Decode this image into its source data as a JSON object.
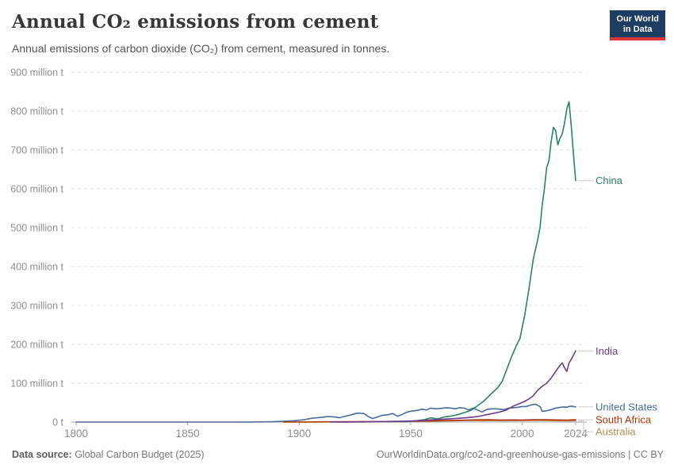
{
  "header": {
    "title": "Annual CO₂ emissions from cement",
    "subtitle": "Annual emissions of carbon dioxide (CO₂) from cement, measured in tonnes.",
    "logo": {
      "line1": "Our World",
      "line2": "in Data"
    }
  },
  "footer": {
    "datasource_label": "Data source:",
    "datasource_value": " Global Carbon Budget (2025)",
    "credit": "OurWorldinData.org/co2-and-greenhouse-gas-emissions | CC BY"
  },
  "chart_data": {
    "type": "line",
    "title": "Annual CO₂ emissions from cement",
    "xlabel": "",
    "ylabel": "",
    "y_unit": "million tonnes CO₂",
    "x_range": [
      1800,
      2024
    ],
    "y_range": [
      0,
      900
    ],
    "grid": "horizontal-dashed",
    "legend": "end-of-line-labels",
    "x_ticks": [
      {
        "value": 1800,
        "label": "1800"
      },
      {
        "value": 1850,
        "label": "1850"
      },
      {
        "value": 1900,
        "label": "1900"
      },
      {
        "value": 1950,
        "label": "1950"
      },
      {
        "value": 2000,
        "label": "2000"
      },
      {
        "value": 2024,
        "label": "2024"
      }
    ],
    "y_ticks": [
      {
        "value": 0,
        "label": "0 t"
      },
      {
        "value": 100,
        "label": "100 million t"
      },
      {
        "value": 200,
        "label": "200 million t"
      },
      {
        "value": 300,
        "label": "300 million t"
      },
      {
        "value": 400,
        "label": "400 million t"
      },
      {
        "value": 500,
        "label": "500 million t"
      },
      {
        "value": 600,
        "label": "600 million t"
      },
      {
        "value": 700,
        "label": "700 million t"
      },
      {
        "value": 800,
        "label": "800 million t"
      },
      {
        "value": 900,
        "label": "900 million t"
      }
    ],
    "series": [
      {
        "name": "United States",
        "color": "#4C6A9C",
        "points": [
          [
            1800,
            0.01
          ],
          [
            1850,
            0.02
          ],
          [
            1870,
            0.05
          ],
          [
            1880,
            0.2
          ],
          [
            1888,
            0.8
          ],
          [
            1893,
            1.8
          ],
          [
            1898,
            3.5
          ],
          [
            1902,
            6
          ],
          [
            1906,
            10
          ],
          [
            1910,
            12
          ],
          [
            1913,
            14
          ],
          [
            1916,
            13
          ],
          [
            1918,
            11
          ],
          [
            1920,
            14
          ],
          [
            1923,
            18
          ],
          [
            1926,
            23
          ],
          [
            1929,
            22
          ],
          [
            1931,
            14
          ],
          [
            1933,
            9
          ],
          [
            1935,
            13
          ],
          [
            1937,
            17
          ],
          [
            1940,
            19
          ],
          [
            1942,
            22
          ],
          [
            1944,
            15
          ],
          [
            1946,
            19
          ],
          [
            1948,
            25
          ],
          [
            1950,
            28
          ],
          [
            1953,
            30
          ],
          [
            1955,
            33
          ],
          [
            1957,
            31
          ],
          [
            1959,
            36
          ],
          [
            1961,
            34
          ],
          [
            1963,
            35
          ],
          [
            1966,
            37
          ],
          [
            1968,
            36
          ],
          [
            1970,
            34
          ],
          [
            1972,
            37
          ],
          [
            1974,
            36
          ],
          [
            1976,
            31
          ],
          [
            1978,
            36
          ],
          [
            1980,
            31
          ],
          [
            1982,
            26
          ],
          [
            1984,
            32
          ],
          [
            1986,
            34
          ],
          [
            1988,
            34
          ],
          [
            1990,
            33
          ],
          [
            1992,
            32
          ],
          [
            1994,
            36
          ],
          [
            1996,
            37
          ],
          [
            1998,
            38
          ],
          [
            2000,
            40
          ],
          [
            2002,
            40
          ],
          [
            2004,
            44
          ],
          [
            2006,
            46
          ],
          [
            2008,
            40
          ],
          [
            2009,
            28
          ],
          [
            2011,
            29
          ],
          [
            2013,
            32
          ],
          [
            2015,
            36
          ],
          [
            2017,
            38
          ],
          [
            2019,
            39
          ],
          [
            2020,
            38
          ],
          [
            2021,
            40
          ],
          [
            2022,
            41
          ],
          [
            2023,
            40
          ],
          [
            2024,
            39
          ]
        ]
      },
      {
        "name": "Australia",
        "color": "#BC8E5A",
        "points": [
          [
            1917,
            0.1
          ],
          [
            1925,
            0.4
          ],
          [
            1932,
            0.6
          ],
          [
            1940,
            0.9
          ],
          [
            1947,
            1.3
          ],
          [
            1952,
            1.8
          ],
          [
            1957,
            2.3
          ],
          [
            1962,
            2.7
          ],
          [
            1967,
            3.2
          ],
          [
            1972,
            3.7
          ],
          [
            1977,
            3.8
          ],
          [
            1982,
            3.4
          ],
          [
            1987,
            3.7
          ],
          [
            1992,
            3.4
          ],
          [
            1997,
            3.7
          ],
          [
            2002,
            3.8
          ],
          [
            2007,
            4.1
          ],
          [
            2012,
            3.7
          ],
          [
            2017,
            3.3
          ],
          [
            2020,
            3
          ],
          [
            2024,
            3
          ]
        ]
      },
      {
        "name": "South Africa",
        "color": "#B13507",
        "points": [
          [
            1893,
            0.1
          ],
          [
            1905,
            0.3
          ],
          [
            1915,
            0.6
          ],
          [
            1925,
            0.9
          ],
          [
            1935,
            1.3
          ],
          [
            1945,
            1.9
          ],
          [
            1950,
            2.3
          ],
          [
            1955,
            2.7
          ],
          [
            1960,
            3.2
          ],
          [
            1965,
            3.8
          ],
          [
            1970,
            4.3
          ],
          [
            1975,
            5
          ],
          [
            1980,
            5.8
          ],
          [
            1985,
            5.9
          ],
          [
            1990,
            5.4
          ],
          [
            1995,
            5.6
          ],
          [
            2000,
            5.4
          ],
          [
            2005,
            6
          ],
          [
            2010,
            6.2
          ],
          [
            2015,
            5.6
          ],
          [
            2020,
            5
          ],
          [
            2024,
            6
          ]
        ]
      },
      {
        "name": "China",
        "color": "#2C8465",
        "points": [
          [
            1928,
            0.2
          ],
          [
            1933,
            0.6
          ],
          [
            1938,
            1.2
          ],
          [
            1943,
            0.9
          ],
          [
            1948,
            1.3
          ],
          [
            1952,
            3
          ],
          [
            1956,
            6
          ],
          [
            1959,
            11
          ],
          [
            1962,
            8
          ],
          [
            1965,
            13
          ],
          [
            1968,
            15
          ],
          [
            1971,
            19
          ],
          [
            1974,
            24
          ],
          [
            1977,
            30
          ],
          [
            1980,
            42
          ],
          [
            1983,
            55
          ],
          [
            1986,
            72
          ],
          [
            1989,
            88
          ],
          [
            1991,
            104
          ],
          [
            1993,
            134
          ],
          [
            1995,
            164
          ],
          [
            1997,
            192
          ],
          [
            1999,
            215
          ],
          [
            2001,
            270
          ],
          [
            2003,
            340
          ],
          [
            2005,
            420
          ],
          [
            2007,
            470
          ],
          [
            2008,
            500
          ],
          [
            2009,
            558
          ],
          [
            2010,
            600
          ],
          [
            2011,
            655
          ],
          [
            2012,
            672
          ],
          [
            2013,
            722
          ],
          [
            2014,
            758
          ],
          [
            2015,
            750
          ],
          [
            2016,
            713
          ],
          [
            2017,
            730
          ],
          [
            2018,
            742
          ],
          [
            2019,
            768
          ],
          [
            2020,
            805
          ],
          [
            2021,
            824
          ],
          [
            2022,
            762
          ],
          [
            2023,
            690
          ],
          [
            2024,
            621
          ]
        ]
      },
      {
        "name": "India",
        "color": "#6D3E91",
        "points": [
          [
            1914,
            0.1
          ],
          [
            1922,
            0.3
          ],
          [
            1930,
            0.6
          ],
          [
            1938,
            1.2
          ],
          [
            1946,
            1.8
          ],
          [
            1950,
            2.6
          ],
          [
            1955,
            4
          ],
          [
            1960,
            6
          ],
          [
            1965,
            7.5
          ],
          [
            1970,
            9
          ],
          [
            1975,
            11
          ],
          [
            1980,
            14
          ],
          [
            1985,
            20
          ],
          [
            1990,
            26
          ],
          [
            1993,
            31
          ],
          [
            1996,
            41
          ],
          [
            1999,
            48
          ],
          [
            2001,
            53
          ],
          [
            2003,
            59
          ],
          [
            2005,
            68
          ],
          [
            2007,
            82
          ],
          [
            2009,
            92
          ],
          [
            2011,
            100
          ],
          [
            2013,
            113
          ],
          [
            2015,
            130
          ],
          [
            2016,
            138
          ],
          [
            2017,
            146
          ],
          [
            2018,
            152
          ],
          [
            2019,
            140
          ],
          [
            2020,
            130
          ],
          [
            2021,
            152
          ],
          [
            2022,
            161
          ],
          [
            2023,
            172
          ],
          [
            2024,
            183
          ]
        ]
      }
    ],
    "style": {
      "grid_color": "#e6e6e6",
      "axis_color": "#a6a6a6",
      "tick_label_color": "#8f8f8f",
      "connector_color": "#cccccc"
    }
  }
}
